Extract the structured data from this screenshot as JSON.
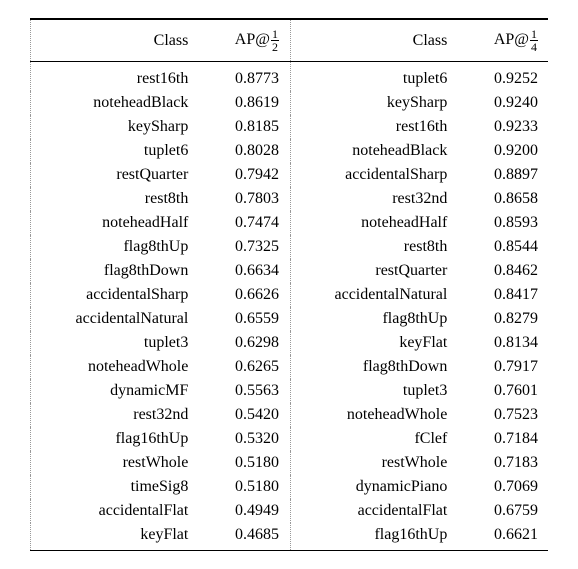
{
  "table": {
    "headers": {
      "left": {
        "class_label": "Class",
        "ap_prefix": "AP@",
        "frac_num": "1",
        "frac_den": "2"
      },
      "right": {
        "class_label": "Class",
        "ap_prefix": "AP@",
        "frac_num": "1",
        "frac_den": "4"
      }
    },
    "rows": [
      {
        "l_class": "rest16th",
        "l_ap": "0.8773",
        "r_class": "tuplet6",
        "r_ap": "0.9252"
      },
      {
        "l_class": "noteheadBlack",
        "l_ap": "0.8619",
        "r_class": "keySharp",
        "r_ap": "0.9240"
      },
      {
        "l_class": "keySharp",
        "l_ap": "0.8185",
        "r_class": "rest16th",
        "r_ap": "0.9233"
      },
      {
        "l_class": "tuplet6",
        "l_ap": "0.8028",
        "r_class": "noteheadBlack",
        "r_ap": "0.9200"
      },
      {
        "l_class": "restQuarter",
        "l_ap": "0.7942",
        "r_class": "accidentalSharp",
        "r_ap": "0.8897"
      },
      {
        "l_class": "rest8th",
        "l_ap": "0.7803",
        "r_class": "rest32nd",
        "r_ap": "0.8658"
      },
      {
        "l_class": "noteheadHalf",
        "l_ap": "0.7474",
        "r_class": "noteheadHalf",
        "r_ap": "0.8593"
      },
      {
        "l_class": "flag8thUp",
        "l_ap": "0.7325",
        "r_class": "rest8th",
        "r_ap": "0.8544"
      },
      {
        "l_class": "flag8thDown",
        "l_ap": "0.6634",
        "r_class": "restQuarter",
        "r_ap": "0.8462"
      },
      {
        "l_class": "accidentalSharp",
        "l_ap": "0.6626",
        "r_class": "accidentalNatural",
        "r_ap": "0.8417"
      },
      {
        "l_class": "accidentalNatural",
        "l_ap": "0.6559",
        "r_class": "flag8thUp",
        "r_ap": "0.8279"
      },
      {
        "l_class": "tuplet3",
        "l_ap": "0.6298",
        "r_class": "keyFlat",
        "r_ap": "0.8134"
      },
      {
        "l_class": "noteheadWhole",
        "l_ap": "0.6265",
        "r_class": "flag8thDown",
        "r_ap": "0.7917"
      },
      {
        "l_class": "dynamicMF",
        "l_ap": "0.5563",
        "r_class": "tuplet3",
        "r_ap": "0.7601"
      },
      {
        "l_class": "rest32nd",
        "l_ap": "0.5420",
        "r_class": "noteheadWhole",
        "r_ap": "0.7523"
      },
      {
        "l_class": "flag16thUp",
        "l_ap": "0.5320",
        "r_class": "fClef",
        "r_ap": "0.7184"
      },
      {
        "l_class": "restWhole",
        "l_ap": "0.5180",
        "r_class": "restWhole",
        "r_ap": "0.7183"
      },
      {
        "l_class": "timeSig8",
        "l_ap": "0.5180",
        "r_class": "dynamicPiano",
        "r_ap": "0.7069"
      },
      {
        "l_class": "accidentalFlat",
        "l_ap": "0.4949",
        "r_class": "accidentalFlat",
        "r_ap": "0.6759"
      },
      {
        "l_class": "keyFlat",
        "l_ap": "0.4685",
        "r_class": "flag16thUp",
        "r_ap": "0.6621"
      }
    ],
    "styling": {
      "font_family": "Times New Roman",
      "body_fontsize_pt": 12,
      "text_color": "#000000",
      "background_color": "#ffffff",
      "top_rule_color": "#000000",
      "bottom_rule_color": "#000000",
      "header_rule_color": "#000000",
      "vertical_sep_color": "#999999",
      "vertical_sep_style": "dotted",
      "text_align": "right"
    }
  }
}
